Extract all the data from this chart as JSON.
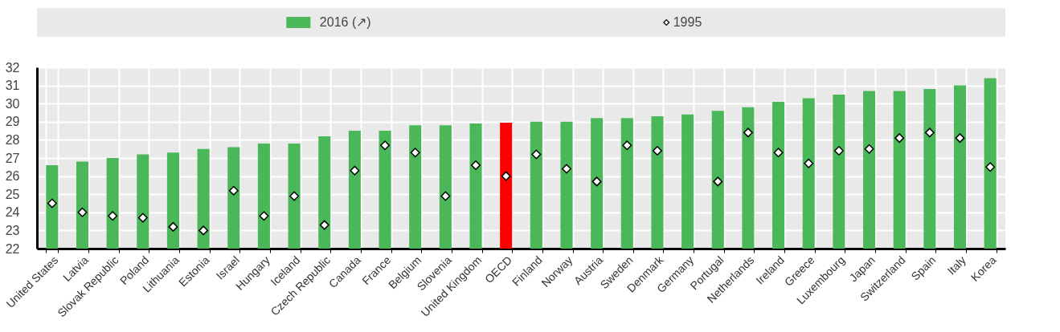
{
  "chart_data": {
    "type": "bar",
    "categories": [
      "United States",
      "Latvia",
      "Slovak Republic",
      "Poland",
      "Lithuania",
      "Estonia",
      "Israel",
      "Hungary",
      "Iceland",
      "Czech Republic",
      "Canada",
      "France",
      "Belgium",
      "Slovenia",
      "United Kingdom",
      "OECD",
      "Finland",
      "Norway",
      "Austria",
      "Sweden",
      "Denmark",
      "Germany",
      "Portugal",
      "Netherlands",
      "Ireland",
      "Greece",
      "Luxembourg",
      "Japan",
      "Switzerland",
      "Spain",
      "Italy",
      "Korea"
    ],
    "series": [
      {
        "name": "2016 (↗)",
        "color": "#4ab858",
        "colors": [
          "#4ab858",
          "#4ab858",
          "#4ab858",
          "#4ab858",
          "#4ab858",
          "#4ab858",
          "#4ab858",
          "#4ab858",
          "#4ab858",
          "#4ab858",
          "#4ab858",
          "#4ab858",
          "#4ab858",
          "#4ab858",
          "#4ab858",
          "#ff0000",
          "#4ab858",
          "#4ab858",
          "#4ab858",
          "#4ab858",
          "#4ab858",
          "#4ab858",
          "#4ab858",
          "#4ab858",
          "#4ab858",
          "#4ab858",
          "#4ab858",
          "#4ab858",
          "#4ab858",
          "#4ab858",
          "#4ab858",
          "#4ab858"
        ],
        "values": [
          26.6,
          26.8,
          27.0,
          27.2,
          27.3,
          27.5,
          27.6,
          27.8,
          27.8,
          28.2,
          28.5,
          28.5,
          28.8,
          28.8,
          28.9,
          28.95,
          29.0,
          29.0,
          29.2,
          29.2,
          29.3,
          29.4,
          29.6,
          29.8,
          30.1,
          30.3,
          30.5,
          30.7,
          30.7,
          30.8,
          31.0,
          31.4
        ]
      },
      {
        "name": "1995",
        "type": "scatter",
        "marker": "diamond",
        "color": "#ffffff",
        "values": [
          24.5,
          24.0,
          23.8,
          23.7,
          23.2,
          23.0,
          25.2,
          23.8,
          24.9,
          23.3,
          26.3,
          27.7,
          27.3,
          24.9,
          26.6,
          26.0,
          27.2,
          26.4,
          25.7,
          27.7,
          27.4,
          null,
          25.7,
          28.4,
          27.3,
          26.7,
          27.4,
          27.5,
          28.1,
          28.4,
          28.1,
          26.5
        ]
      }
    ],
    "ylim": [
      22,
      32
    ],
    "yticks": [
      22,
      23,
      24,
      25,
      26,
      27,
      28,
      29,
      30,
      31,
      32
    ],
    "grid": true,
    "legend": "top"
  }
}
